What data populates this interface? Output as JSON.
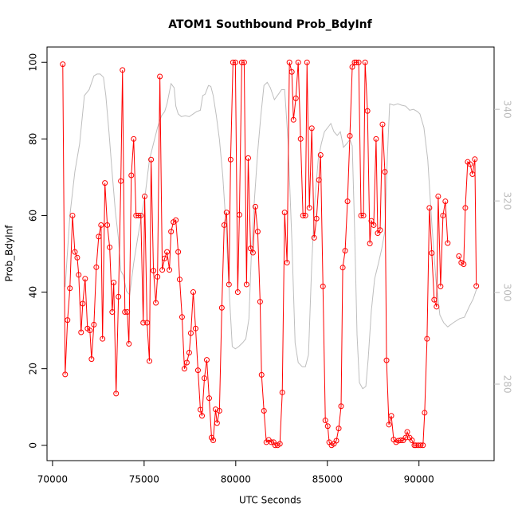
{
  "chart_data": {
    "type": "line",
    "title": "ATOM1 Southbound Prob_BdyInf",
    "x_label": "UTC Seconds",
    "y_label": "Prob_BdyInf",
    "xlim": [
      69700,
      94100
    ],
    "ylim": [
      -4,
      104
    ],
    "y2lim": [
      263.3,
      353.6
    ],
    "xticks": [
      70000,
      75000,
      80000,
      85000,
      90000
    ],
    "yticks": [
      0,
      20,
      40,
      60,
      80,
      100
    ],
    "y2ticks": [
      280,
      300,
      320,
      340
    ],
    "y2_color": "#bbbbbb",
    "series": [
      {
        "color": "#ff0000",
        "markers": true,
        "x": [
          70560,
          70690,
          70820,
          70950,
          71090,
          71220,
          71350,
          71430,
          71560,
          71650,
          71780,
          71910,
          72040,
          72130,
          72260,
          72390,
          72520,
          72650,
          72730,
          72860,
          72990,
          73120,
          73260,
          73340,
          73470,
          73600,
          73730,
          73820,
          73950,
          74080,
          74170,
          74300,
          74430,
          74560,
          74690,
          74820,
          74950,
          75030,
          75160,
          75290,
          75380,
          75510,
          75640,
          75730,
          75860,
          75990,
          76120,
          76250,
          76380,
          76470,
          76600,
          76730,
          76860,
          76940,
          77070,
          77200,
          77330,
          77460,
          77550,
          77680,
          77810,
          77940,
          78070,
          78160,
          78290,
          78420,
          78550,
          78680,
          78770,
          78900,
          78980,
          79110,
          79240,
          79370,
          79500,
          79630,
          79720,
          79850,
          79980,
          80110,
          80200,
          80330,
          80460,
          80590,
          80680,
          80810,
          80940,
          81070,
          81200,
          81330,
          81410,
          81540,
          81670,
          81800,
          81940,
          82070,
          82150,
          82280,
          82410,
          82540,
          82670,
          82800,
          82930,
          83060,
          83150,
          83280,
          83410,
          83540,
          83670,
          83800,
          83890,
          84020,
          84150,
          84280,
          84410,
          84540,
          84630,
          84760,
          84890,
          85020,
          85100,
          85230,
          85360,
          85490,
          85620,
          85750,
          85840,
          85970,
          86100,
          86230,
          86360,
          86490,
          86580,
          86710,
          86840,
          86970,
          87060,
          87190,
          87320,
          87400,
          87530,
          87660,
          87750,
          87880,
          88010,
          88140,
          88230,
          88360,
          88490,
          88620,
          88750,
          88880,
          89010,
          89140,
          89270,
          89360,
          89490,
          89620,
          89750,
          89830,
          89960,
          90090,
          90220,
          90310,
          90440,
          90570,
          90700,
          90830,
          90960,
          91050,
          91180,
          91310,
          91440,
          91570,
          91870,
          92180,
          92310,
          92440,
          92530,
          92660,
          92790,
          92920,
          93050,
          93130
        ],
        "values": [
          99.5,
          18.5,
          32.7,
          41,
          60,
          50.5,
          49,
          44.5,
          29.5,
          37,
          43.5,
          30.5,
          30,
          22.5,
          31.5,
          46.5,
          54.5,
          57.5,
          27.8,
          68.5,
          57.5,
          51.7,
          34.8,
          42.5,
          13.5,
          38.8,
          69,
          98,
          34.8,
          34.8,
          26.5,
          70.5,
          80,
          60,
          60,
          60,
          32,
          65,
          32,
          22,
          74.6,
          45.6,
          37.2,
          44,
          96.3,
          45.8,
          48.8,
          50.5,
          45.8,
          55.8,
          58.3,
          58.8,
          50.5,
          43.3,
          33.5,
          20,
          21.6,
          24.2,
          29.3,
          40,
          30.5,
          19.6,
          9.3,
          7.7,
          17.5,
          22.3,
          12.3,
          2,
          1.3,
          9.4,
          5.8,
          9,
          35.9,
          57.5,
          60.8,
          42,
          74.6,
          100,
          100,
          40,
          60.2,
          100,
          100,
          42,
          75,
          51.4,
          50.3,
          62.3,
          55.8,
          37.5,
          18.4,
          9,
          0.8,
          1.4,
          0.8,
          0.8,
          0,
          0,
          0.4,
          13.8,
          60.8,
          47.7,
          100,
          97.5,
          85,
          90.6,
          100,
          80,
          60,
          60,
          100,
          62,
          82.8,
          54.2,
          59.2,
          69.3,
          75.8,
          41.5,
          6.5,
          5,
          0.8,
          0,
          0.4,
          1.2,
          4.4,
          10.2,
          46.4,
          50.8,
          63.7,
          80.8,
          98.8,
          100,
          100,
          100,
          60,
          60,
          100,
          87.3,
          52.7,
          58.6,
          57.5,
          80,
          55.4,
          56.2,
          83.8,
          71.4,
          22.2,
          5.4,
          7.7,
          1.5,
          0.8,
          1.2,
          1.3,
          1.3,
          2,
          3.5,
          2,
          1.3,
          0,
          0,
          0,
          0,
          0,
          8.5,
          27.8,
          62,
          50.2,
          38,
          36.2,
          65,
          41.5,
          60,
          63.7,
          52.8,
          null,
          49.4,
          47.7,
          47.3,
          62,
          74,
          73.4,
          70.8,
          74.7,
          41.6
        ]
      },
      {
        "color": "#bebebe",
        "axis": "y2",
        "x": [
          70690,
          70950,
          71220,
          71480,
          71740,
          72000,
          72260,
          72430,
          72600,
          72780,
          72910,
          73080,
          73260,
          73430,
          73600,
          73730,
          73860,
          74040,
          74210,
          74430,
          74640,
          74860,
          75080,
          75290,
          75510,
          75730,
          75950,
          76120,
          76250,
          76470,
          76640,
          76730,
          76860,
          77030,
          77250,
          77460,
          77680,
          77860,
          78070,
          78200,
          78330,
          78510,
          78640,
          78770,
          78940,
          79110,
          79290,
          79460,
          79630,
          79810,
          79980,
          80160,
          80370,
          80550,
          80720,
          80850,
          81020,
          81200,
          81370,
          81540,
          81720,
          81890,
          82110,
          82330,
          82500,
          82670,
          82850,
          83060,
          83240,
          83410,
          83630,
          83800,
          83970,
          84150,
          84320,
          84500,
          84670,
          84840,
          85020,
          85190,
          85360,
          85540,
          85710,
          85880,
          86060,
          86230,
          86360,
          86490,
          86620,
          86750,
          86930,
          87100,
          87230,
          87400,
          87580,
          87790,
          87970,
          88140,
          88270,
          88400,
          88620,
          88840,
          89050,
          89270,
          89490,
          89700,
          89920,
          90050,
          90270,
          90480,
          90700,
          90920,
          91140,
          91350,
          91570,
          91870,
          92220,
          92480,
          92740,
          92960,
          93180
        ],
        "values": [
          301.2,
          316.9,
          326.4,
          332.5,
          343.0,
          344.3,
          347.3,
          347.7,
          347.7,
          347.0,
          343.0,
          335.1,
          325.9,
          317.7,
          311.7,
          304.7,
          303.8,
          300.3,
          299.5,
          306.4,
          311.7,
          316.9,
          322.1,
          329.0,
          332.5,
          336.0,
          338.6,
          339.5,
          341.2,
          345.6,
          344.7,
          340.7,
          339.0,
          338.4,
          338.6,
          338.4,
          339.0,
          339.5,
          339.8,
          343.0,
          343.3,
          345.2,
          345.0,
          343.0,
          338.6,
          333.4,
          325.6,
          315.1,
          301.2,
          288.2,
          287.7,
          288.2,
          289.0,
          289.9,
          294.3,
          308.2,
          320.3,
          330.8,
          338.6,
          345.2,
          345.9,
          344.7,
          342.1,
          343.3,
          344.3,
          344.3,
          333.4,
          311.7,
          289.0,
          284.7,
          283.8,
          283.8,
          286.4,
          306.4,
          320.3,
          329.0,
          332.5,
          335.1,
          336.0,
          336.9,
          335.1,
          334.3,
          335.1,
          331.7,
          332.5,
          333.4,
          332.0,
          313.4,
          290.8,
          280.3,
          279.0,
          279.5,
          285.6,
          296.0,
          303.0,
          306.4,
          309.6,
          313.4,
          329.0,
          341.2,
          340.9,
          341.2,
          340.9,
          340.7,
          339.8,
          340.0,
          339.5,
          339.0,
          336.0,
          329.0,
          315.1,
          303.0,
          295.1,
          293.4,
          292.5,
          293.4,
          294.3,
          294.6,
          296.9,
          298.6,
          301.2
        ]
      }
    ]
  }
}
